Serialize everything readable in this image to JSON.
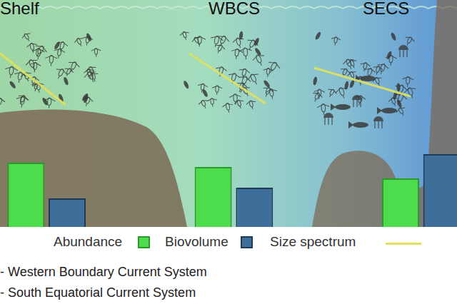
{
  "chart_data": {
    "type": "bar",
    "categories": [
      "Shelf",
      "WBCS",
      "SECS"
    ],
    "series": [
      {
        "name": "Abundance",
        "color": "#4cdc4c",
        "values": [
          90,
          84,
          68
        ]
      },
      {
        "name": "Biovolume",
        "color": "#3e6e9a",
        "values": [
          40,
          55,
          102
        ]
      }
    ],
    "ylim": [
      0,
      110
    ],
    "tick_labels": false,
    "grid": false,
    "legend": "bottom"
  },
  "size_spectrum": {
    "name": "Size spectrum",
    "color": "#e2e25a"
  },
  "notes": [
    "- Western Boundary Current System",
    "- South Equatorial Current System"
  ]
}
